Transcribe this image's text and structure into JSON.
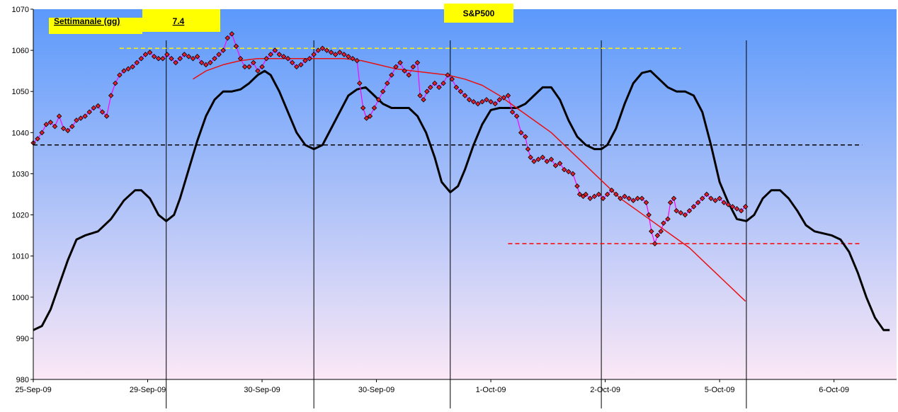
{
  "chart_data": {
    "type": "line",
    "title": "S&P500",
    "label_box": {
      "label": "Settimanale (gg)",
      "value": "7.4"
    },
    "ylim": [
      980,
      1070
    ],
    "y_ticks": [
      980,
      990,
      1000,
      1010,
      1020,
      1030,
      1040,
      1050,
      1060,
      1070
    ],
    "x_tick_labels": [
      "25-Sep-09",
      "29-Sep-09",
      "30-Sep-09",
      "30-Sep-09",
      "1-Oct-09",
      "2-Oct-09",
      "5-Oct-09",
      "6-Oct-09"
    ],
    "x_range": [
      0,
      100
    ],
    "x_tick_positions": [
      0,
      13.25,
      26.5,
      39.75,
      53,
      66.25,
      79.5,
      92.75
    ],
    "vertical_lines": [
      15.4,
      32.5,
      48.3,
      65.8,
      82.6
    ],
    "grid": false,
    "legend": "none",
    "background_gradient": [
      "#5b99fb",
      "#fbe8f6"
    ],
    "series": [
      {
        "kind": "cycle",
        "color": "#000000",
        "points": [
          [
            0,
            992
          ],
          [
            1,
            993
          ],
          [
            2,
            997
          ],
          [
            3,
            1003
          ],
          [
            4,
            1009
          ],
          [
            5,
            1014
          ],
          [
            6,
            1015
          ],
          [
            7.5,
            1016
          ],
          [
            9,
            1019
          ],
          [
            10.5,
            1023.5
          ],
          [
            11.8,
            1026
          ],
          [
            12.5,
            1026
          ],
          [
            13.5,
            1024
          ],
          [
            14.5,
            1020
          ],
          [
            15.4,
            1018.5
          ],
          [
            16.3,
            1020
          ],
          [
            17,
            1024
          ],
          [
            18,
            1031
          ],
          [
            19,
            1038
          ],
          [
            20,
            1044
          ],
          [
            21,
            1048
          ],
          [
            22,
            1050
          ],
          [
            23,
            1050
          ],
          [
            24,
            1050.5
          ],
          [
            25,
            1052
          ],
          [
            26,
            1054
          ],
          [
            26.8,
            1055
          ],
          [
            27.5,
            1054
          ],
          [
            28.5,
            1050
          ],
          [
            29.5,
            1045
          ],
          [
            30.5,
            1040
          ],
          [
            31.5,
            1037
          ],
          [
            32.5,
            1036
          ],
          [
            33.5,
            1037
          ],
          [
            34.5,
            1041
          ],
          [
            35.5,
            1045
          ],
          [
            36.5,
            1049
          ],
          [
            37.5,
            1050.5
          ],
          [
            38.5,
            1051
          ],
          [
            39.5,
            1049
          ],
          [
            40.5,
            1047
          ],
          [
            41.5,
            1046
          ],
          [
            42.5,
            1046
          ],
          [
            43.5,
            1046
          ],
          [
            44.5,
            1044
          ],
          [
            45.5,
            1040
          ],
          [
            46.5,
            1034
          ],
          [
            47.3,
            1028
          ],
          [
            48.3,
            1025.5
          ],
          [
            49.2,
            1027
          ],
          [
            50,
            1031
          ],
          [
            51,
            1037
          ],
          [
            52,
            1042
          ],
          [
            53,
            1045.5
          ],
          [
            54,
            1046
          ],
          [
            55,
            1046
          ],
          [
            56,
            1046
          ],
          [
            57,
            1047
          ],
          [
            58,
            1049
          ],
          [
            59,
            1051
          ],
          [
            60,
            1051
          ],
          [
            61,
            1048
          ],
          [
            62,
            1043
          ],
          [
            63,
            1039
          ],
          [
            64,
            1037
          ],
          [
            65,
            1036
          ],
          [
            65.8,
            1036
          ],
          [
            66.5,
            1037
          ],
          [
            67.5,
            1041
          ],
          [
            68.5,
            1047
          ],
          [
            69.5,
            1052
          ],
          [
            70.5,
            1054.5
          ],
          [
            71.5,
            1055
          ],
          [
            72.5,
            1053
          ],
          [
            73.5,
            1051
          ],
          [
            74.5,
            1050
          ],
          [
            75.5,
            1050
          ],
          [
            76.5,
            1049
          ],
          [
            77.5,
            1045
          ],
          [
            78.5,
            1037
          ],
          [
            79.5,
            1028
          ],
          [
            80.5,
            1023
          ],
          [
            81.5,
            1019
          ],
          [
            82.6,
            1018.5
          ],
          [
            83.5,
            1020
          ],
          [
            84.5,
            1024
          ],
          [
            85.5,
            1026
          ],
          [
            86.5,
            1026
          ],
          [
            87.5,
            1024
          ],
          [
            88.5,
            1021
          ],
          [
            89.5,
            1017.5
          ],
          [
            90.5,
            1016
          ],
          [
            91.5,
            1015.5
          ],
          [
            92.5,
            1015
          ],
          [
            93.5,
            1014
          ],
          [
            94.5,
            1011
          ],
          [
            95.5,
            1006
          ],
          [
            96.5,
            1000
          ],
          [
            97.5,
            995
          ],
          [
            98.5,
            992
          ],
          [
            99.2,
            992
          ]
        ]
      },
      {
        "kind": "price",
        "color": "#ff00ff",
        "marker_color": "#e0202a",
        "points": [
          [
            0,
            1037.5
          ],
          [
            0.5,
            1038.5
          ],
          [
            1,
            1040
          ],
          [
            1.5,
            1042
          ],
          [
            2,
            1042.5
          ],
          [
            2.5,
            1041.5
          ],
          [
            3,
            1044
          ],
          [
            3.5,
            1041
          ],
          [
            4,
            1040.5
          ],
          [
            4.5,
            1041.5
          ],
          [
            5,
            1043
          ],
          [
            5.5,
            1043.5
          ],
          [
            6,
            1044
          ],
          [
            6.5,
            1045
          ],
          [
            7,
            1046
          ],
          [
            7.5,
            1046.5
          ],
          [
            8,
            1045
          ],
          [
            8.5,
            1044
          ],
          [
            9,
            1049
          ],
          [
            9.5,
            1052
          ],
          [
            10,
            1054
          ],
          [
            10.5,
            1055
          ],
          [
            11,
            1055.5
          ],
          [
            11.5,
            1056
          ],
          [
            12,
            1057
          ],
          [
            12.5,
            1058
          ],
          [
            13,
            1059
          ],
          [
            13.5,
            1059.5
          ],
          [
            14,
            1058.5
          ],
          [
            14.5,
            1058
          ],
          [
            15,
            1058
          ],
          [
            15.5,
            1059
          ],
          [
            16,
            1058
          ],
          [
            16.5,
            1057
          ],
          [
            17,
            1058
          ],
          [
            17.5,
            1059
          ],
          [
            18,
            1058.5
          ],
          [
            18.5,
            1058
          ],
          [
            19,
            1058.5
          ],
          [
            19.5,
            1057
          ],
          [
            20,
            1056.5
          ],
          [
            20.5,
            1057
          ],
          [
            21,
            1058
          ],
          [
            21.5,
            1059
          ],
          [
            22,
            1060
          ],
          [
            22.5,
            1063
          ],
          [
            23,
            1064
          ],
          [
            23.5,
            1061
          ],
          [
            24,
            1058
          ],
          [
            24.5,
            1056
          ],
          [
            25,
            1056
          ],
          [
            25.5,
            1057
          ],
          [
            26,
            1055
          ],
          [
            26.5,
            1056
          ],
          [
            27,
            1058
          ],
          [
            27.5,
            1059
          ],
          [
            28,
            1060
          ],
          [
            28.5,
            1059
          ],
          [
            29,
            1058.5
          ],
          [
            29.5,
            1058
          ],
          [
            30,
            1057
          ],
          [
            30.5,
            1056
          ],
          [
            31,
            1056.5
          ],
          [
            31.5,
            1057.5
          ],
          [
            32,
            1058
          ],
          [
            32.5,
            1059
          ],
          [
            33,
            1060
          ],
          [
            33.5,
            1060.5
          ],
          [
            34,
            1060
          ],
          [
            34.5,
            1059.5
          ],
          [
            35,
            1059
          ],
          [
            35.5,
            1059.5
          ],
          [
            36,
            1059
          ],
          [
            36.5,
            1058.5
          ],
          [
            37,
            1058
          ],
          [
            37.5,
            1057.5
          ],
          [
            37.8,
            1052
          ],
          [
            38.2,
            1046
          ],
          [
            38.6,
            1043.5
          ],
          [
            39,
            1044
          ],
          [
            39.5,
            1046
          ],
          [
            40,
            1048
          ],
          [
            40.5,
            1050
          ],
          [
            41,
            1052
          ],
          [
            41.5,
            1054
          ],
          [
            42,
            1056
          ],
          [
            42.5,
            1057
          ],
          [
            43,
            1055
          ],
          [
            43.5,
            1054
          ],
          [
            44,
            1056
          ],
          [
            44.5,
            1057
          ],
          [
            44.8,
            1049
          ],
          [
            45.2,
            1048
          ],
          [
            45.6,
            1050
          ],
          [
            46,
            1051
          ],
          [
            46.5,
            1052
          ],
          [
            47,
            1051
          ],
          [
            47.5,
            1052
          ],
          [
            48,
            1054
          ],
          [
            48.5,
            1053
          ],
          [
            49,
            1051
          ],
          [
            49.5,
            1050
          ],
          [
            50,
            1049
          ],
          [
            50.5,
            1048
          ],
          [
            51,
            1047.5
          ],
          [
            51.5,
            1047
          ],
          [
            52,
            1047.5
          ],
          [
            52.5,
            1048
          ],
          [
            53,
            1047.5
          ],
          [
            53.5,
            1047
          ],
          [
            54,
            1048
          ],
          [
            54.5,
            1048.5
          ],
          [
            55,
            1049
          ],
          [
            55.5,
            1045
          ],
          [
            56,
            1044
          ],
          [
            56.5,
            1040
          ],
          [
            57,
            1039
          ],
          [
            57.3,
            1036
          ],
          [
            57.6,
            1034
          ],
          [
            58,
            1033
          ],
          [
            58.5,
            1033.5
          ],
          [
            59,
            1034
          ],
          [
            59.5,
            1033
          ],
          [
            60,
            1033.5
          ],
          [
            60.5,
            1032
          ],
          [
            61,
            1032.5
          ],
          [
            61.5,
            1031
          ],
          [
            62,
            1030.5
          ],
          [
            62.5,
            1030
          ],
          [
            63,
            1027
          ],
          [
            63.3,
            1025
          ],
          [
            63.7,
            1024.5
          ],
          [
            64,
            1025
          ],
          [
            64.5,
            1024
          ],
          [
            65,
            1024.5
          ],
          [
            65.5,
            1025
          ],
          [
            66,
            1024
          ],
          [
            66.5,
            1025
          ],
          [
            67,
            1026
          ],
          [
            67.5,
            1025
          ],
          [
            68,
            1024
          ],
          [
            68.5,
            1024.5
          ],
          [
            69,
            1024
          ],
          [
            69.5,
            1023.5
          ],
          [
            70,
            1024
          ],
          [
            70.5,
            1024
          ],
          [
            71,
            1023
          ],
          [
            71.3,
            1020
          ],
          [
            71.6,
            1016
          ],
          [
            72,
            1013
          ],
          [
            72.3,
            1015
          ],
          [
            72.7,
            1016
          ],
          [
            73,
            1018
          ],
          [
            73.5,
            1019
          ],
          [
            73.8,
            1023
          ],
          [
            74.2,
            1024
          ],
          [
            74.5,
            1021
          ],
          [
            75,
            1020.5
          ],
          [
            75.5,
            1020
          ],
          [
            76,
            1021
          ],
          [
            76.5,
            1022
          ],
          [
            77,
            1023
          ],
          [
            77.5,
            1024
          ],
          [
            78,
            1025
          ],
          [
            78.5,
            1024
          ],
          [
            79,
            1023.5
          ],
          [
            79.5,
            1024
          ],
          [
            80,
            1023
          ],
          [
            80.5,
            1022.5
          ],
          [
            81,
            1022
          ],
          [
            81.5,
            1021.5
          ],
          [
            82,
            1021
          ],
          [
            82.5,
            1022
          ]
        ]
      },
      {
        "kind": "moving_average",
        "color": "#e81010",
        "points": [
          [
            18.5,
            1053
          ],
          [
            20,
            1055
          ],
          [
            22,
            1056.5
          ],
          [
            24,
            1057.5
          ],
          [
            26,
            1058
          ],
          [
            28,
            1058
          ],
          [
            30,
            1058
          ],
          [
            32,
            1058
          ],
          [
            34,
            1058
          ],
          [
            36,
            1058
          ],
          [
            38,
            1057.5
          ],
          [
            40,
            1056.5
          ],
          [
            42,
            1055.5
          ],
          [
            44,
            1055
          ],
          [
            46,
            1054.5
          ],
          [
            48,
            1054
          ],
          [
            50,
            1053
          ],
          [
            52,
            1051.5
          ],
          [
            54,
            1049
          ],
          [
            56,
            1046
          ],
          [
            58,
            1043
          ],
          [
            60,
            1040
          ],
          [
            62,
            1036
          ],
          [
            64,
            1032
          ],
          [
            66,
            1028
          ],
          [
            68,
            1024
          ],
          [
            70,
            1021
          ],
          [
            72,
            1018
          ],
          [
            74,
            1015
          ],
          [
            76,
            1012
          ],
          [
            78,
            1008
          ],
          [
            80,
            1004
          ],
          [
            82,
            1000
          ],
          [
            82.5,
            999
          ]
        ]
      }
    ],
    "reference_lines": [
      {
        "y": 1060.5,
        "x": [
          10,
          75
        ],
        "color": "#ffee00"
      },
      {
        "y": 1037,
        "x": [
          0,
          96
        ],
        "color": "#000000"
      },
      {
        "y": 1013,
        "x": [
          55,
          96
        ],
        "color": "#ff0000"
      }
    ]
  }
}
